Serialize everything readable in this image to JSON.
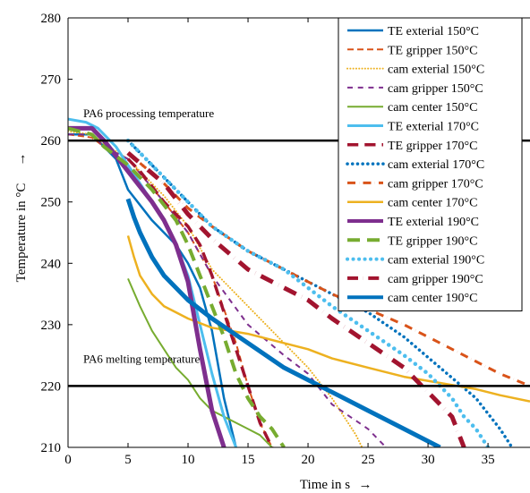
{
  "chart_data": {
    "type": "line",
    "title": "",
    "xlabel": "Time in s",
    "ylabel": "Temperature in °C",
    "xlim": [
      0,
      38.5
    ],
    "ylim": [
      210,
      280
    ],
    "xticks": [
      0,
      5,
      10,
      15,
      20,
      25,
      30,
      35
    ],
    "yticks": [
      210,
      220,
      230,
      240,
      250,
      260,
      270,
      280
    ],
    "grid": false,
    "legend_position": "top-right",
    "reference_lines": [
      {
        "label": "PA6 processing temperature",
        "y": 260
      },
      {
        "label": "PA6 melting temperature",
        "y": 220
      }
    ],
    "series": [
      {
        "name": "TE exterial 150°C",
        "color": "#0072BD",
        "style": "solid",
        "width": 2.5,
        "points": [
          [
            0,
            261
          ],
          [
            2,
            261
          ],
          [
            3,
            259
          ],
          [
            4,
            257
          ],
          [
            5,
            252
          ],
          [
            7,
            247
          ],
          [
            9,
            243
          ],
          [
            10,
            240
          ],
          [
            11,
            236
          ],
          [
            12,
            229
          ],
          [
            13,
            218
          ],
          [
            14,
            210
          ]
        ]
      },
      {
        "name": "TE gripper 150°C",
        "color": "#D95319",
        "style": "dashed",
        "width": 2,
        "points": [
          [
            0,
            261
          ],
          [
            2,
            260.5
          ],
          [
            3,
            259
          ],
          [
            5,
            257
          ],
          [
            8,
            250
          ],
          [
            10,
            245
          ],
          [
            12,
            238
          ],
          [
            14,
            227
          ],
          [
            15,
            220
          ],
          [
            16,
            214
          ],
          [
            17,
            210
          ]
        ]
      },
      {
        "name": "cam exterial 150°C",
        "color": "#EDB120",
        "style": "dotted",
        "width": 2,
        "points": [
          [
            0,
            261.5
          ],
          [
            2,
            261
          ],
          [
            3,
            259.5
          ],
          [
            5,
            257
          ],
          [
            8,
            251
          ],
          [
            10,
            246
          ],
          [
            12,
            239
          ],
          [
            15,
            233
          ],
          [
            18,
            227
          ],
          [
            20,
            223
          ],
          [
            22,
            218
          ],
          [
            23,
            215
          ],
          [
            24,
            212
          ],
          [
            24.5,
            210
          ]
        ]
      },
      {
        "name": "cam gripper 150°C",
        "color": "#7E2F8E",
        "style": "dashdot",
        "width": 2,
        "points": [
          [
            0,
            261
          ],
          [
            2,
            261
          ],
          [
            3,
            259
          ],
          [
            5,
            257
          ],
          [
            8,
            250
          ],
          [
            10,
            245
          ],
          [
            12,
            238
          ],
          [
            15,
            230
          ],
          [
            18,
            225
          ],
          [
            20,
            222
          ],
          [
            22,
            217
          ],
          [
            25,
            213
          ],
          [
            26.5,
            210
          ]
        ]
      },
      {
        "name": "cam center 150°C",
        "color": "#77AC30",
        "style": "solid",
        "width": 2,
        "points": [
          [
            5,
            237.5
          ],
          [
            6,
            233
          ],
          [
            7,
            229
          ],
          [
            8,
            226
          ],
          [
            9,
            223
          ],
          [
            10,
            221
          ],
          [
            11,
            218
          ],
          [
            12,
            216
          ],
          [
            13,
            215
          ],
          [
            15,
            213
          ],
          [
            16,
            212
          ],
          [
            17,
            210
          ]
        ]
      },
      {
        "name": "TE exterial 170°C",
        "color": "#4DBEEE",
        "style": "solid",
        "width": 3,
        "points": [
          [
            0,
            263.5
          ],
          [
            1.5,
            263
          ],
          [
            2.5,
            262
          ],
          [
            4,
            259
          ],
          [
            6,
            253
          ],
          [
            8,
            247
          ],
          [
            9,
            243
          ],
          [
            10,
            238
          ],
          [
            11,
            230
          ],
          [
            12,
            222
          ],
          [
            13,
            215
          ],
          [
            14,
            210
          ]
        ]
      },
      {
        "name": "TE gripper 170°C",
        "color": "#A2142F",
        "style": "dashed",
        "width": 3.5,
        "points": [
          [
            5,
            257
          ],
          [
            6,
            255
          ],
          [
            8,
            250
          ],
          [
            10,
            246
          ],
          [
            11,
            243
          ],
          [
            12,
            238
          ],
          [
            13,
            232
          ],
          [
            14,
            226
          ],
          [
            15,
            220
          ],
          [
            16,
            214
          ],
          [
            17,
            210
          ]
        ]
      },
      {
        "name": "cam exterial 170°C",
        "color": "#0072BD",
        "style": "dotted",
        "width": 3.5,
        "points": [
          [
            5,
            260
          ],
          [
            8,
            254
          ],
          [
            10,
            250
          ],
          [
            12,
            246
          ],
          [
            15,
            242
          ],
          [
            18,
            239
          ],
          [
            20,
            237
          ],
          [
            22,
            235
          ],
          [
            25,
            232
          ],
          [
            28,
            228
          ],
          [
            31,
            223
          ],
          [
            34,
            218
          ],
          [
            36,
            213
          ],
          [
            37,
            210
          ]
        ]
      },
      {
        "name": "cam gripper 170°C",
        "color": "#D95319",
        "style": "dashdot",
        "width": 3,
        "points": [
          [
            5,
            258
          ],
          [
            8,
            253
          ],
          [
            10,
            249
          ],
          [
            12,
            246
          ],
          [
            15,
            242
          ],
          [
            18,
            239
          ],
          [
            20,
            237
          ],
          [
            22,
            235
          ],
          [
            25,
            232.5
          ],
          [
            28,
            230
          ],
          [
            31,
            227
          ],
          [
            34,
            224
          ],
          [
            36,
            222
          ],
          [
            38.5,
            220
          ]
        ]
      },
      {
        "name": "cam center 170°C",
        "color": "#EDB120",
        "style": "solid",
        "width": 2.5,
        "points": [
          [
            5,
            244.5
          ],
          [
            5.5,
            241
          ],
          [
            6,
            238
          ],
          [
            7,
            235
          ],
          [
            8,
            233
          ],
          [
            10,
            231
          ],
          [
            12,
            229.5
          ],
          [
            15,
            228.5
          ],
          [
            18,
            227
          ],
          [
            20,
            226
          ],
          [
            22,
            224.5
          ],
          [
            25,
            223
          ],
          [
            28,
            221.5
          ],
          [
            31,
            220.5
          ],
          [
            34,
            219.5
          ],
          [
            36,
            218.5
          ],
          [
            38.5,
            217.5
          ]
        ]
      },
      {
        "name": "TE exterial 190°C",
        "color": "#7E2F8E",
        "style": "solid",
        "width": 5,
        "points": [
          [
            0,
            262
          ],
          [
            2,
            262
          ],
          [
            3,
            260
          ],
          [
            5,
            255
          ],
          [
            7,
            250
          ],
          [
            8,
            247
          ],
          [
            9,
            243
          ],
          [
            10,
            237
          ],
          [
            11,
            226
          ],
          [
            12,
            216
          ],
          [
            13,
            210
          ]
        ]
      },
      {
        "name": "TE gripper 190°C",
        "color": "#77AC30",
        "style": "dashed",
        "width": 4,
        "points": [
          [
            0,
            262
          ],
          [
            2,
            261
          ],
          [
            3,
            259
          ],
          [
            5,
            256
          ],
          [
            7,
            252
          ],
          [
            9,
            247
          ],
          [
            10,
            243
          ],
          [
            11,
            238
          ],
          [
            13,
            228
          ],
          [
            14,
            222
          ],
          [
            15,
            218
          ],
          [
            16,
            215
          ],
          [
            17,
            213
          ],
          [
            18,
            210
          ]
        ]
      },
      {
        "name": "cam exterial 190°C",
        "color": "#4DBEEE",
        "style": "dotted",
        "width": 4.5,
        "points": [
          [
            5,
            260
          ],
          [
            8,
            254
          ],
          [
            10,
            250
          ],
          [
            12,
            246
          ],
          [
            15,
            242
          ],
          [
            18,
            239
          ],
          [
            20,
            236
          ],
          [
            22,
            233
          ],
          [
            25,
            229
          ],
          [
            28,
            225
          ],
          [
            30,
            222
          ],
          [
            32,
            218
          ],
          [
            33,
            215
          ],
          [
            34,
            213
          ],
          [
            35,
            210
          ]
        ]
      },
      {
        "name": "cam gripper 190°C",
        "color": "#A2142F",
        "style": "dashdot",
        "width": 5,
        "points": [
          [
            5,
            258
          ],
          [
            8,
            253
          ],
          [
            10,
            248
          ],
          [
            12,
            244
          ],
          [
            15,
            239
          ],
          [
            18,
            236
          ],
          [
            20,
            234
          ],
          [
            22,
            231
          ],
          [
            25,
            227
          ],
          [
            28,
            223
          ],
          [
            30,
            219
          ],
          [
            32,
            215
          ],
          [
            33,
            210
          ]
        ]
      },
      {
        "name": "cam center 190°C",
        "color": "#0072BD",
        "style": "solid",
        "width": 5,
        "points": [
          [
            5,
            250.5
          ],
          [
            5.5,
            247.5
          ],
          [
            6,
            245
          ],
          [
            7,
            241
          ],
          [
            8,
            238
          ],
          [
            10,
            234
          ],
          [
            12,
            231
          ],
          [
            15,
            227
          ],
          [
            18,
            223
          ],
          [
            20,
            221
          ],
          [
            22,
            219
          ],
          [
            25,
            216
          ],
          [
            28,
            213
          ],
          [
            30,
            211
          ],
          [
            31,
            210
          ]
        ]
      }
    ]
  }
}
